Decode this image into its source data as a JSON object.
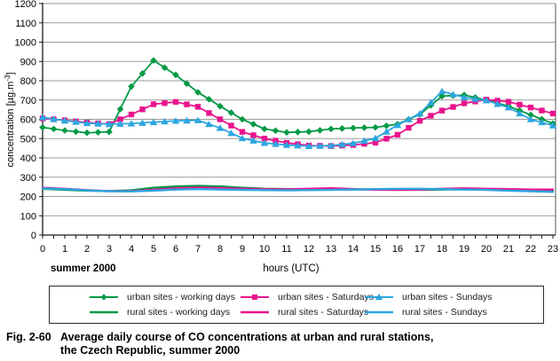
{
  "figure": {
    "caption_prefix": "Fig. 2-60",
    "caption_line1": "Average daily course of CO concentrations at urban and rural stations,",
    "caption_line2": "the Czech Republic, summer 2000"
  },
  "chart_data": {
    "type": "line",
    "title": "",
    "xlabel": "hours (UTC)",
    "ylabel": "concentration [µg.m-3]",
    "ylabel_parts": {
      "prefix": "concentration [µg.m",
      "sup": "-3",
      "suffix": "]"
    },
    "x_note": "summer 2000",
    "xlim": [
      0,
      23.12
    ],
    "ylim": [
      0,
      1200
    ],
    "x_ticks": [
      0,
      1,
      2,
      3,
      4,
      5,
      6,
      7,
      8,
      9,
      10,
      11,
      12,
      13,
      14,
      15,
      16,
      17,
      18,
      19,
      20,
      21,
      22,
      23
    ],
    "y_ticks": [
      0,
      100,
      200,
      300,
      400,
      500,
      600,
      700,
      800,
      900,
      1000,
      1100,
      1200
    ],
    "grid": true,
    "legend_position": "bottom",
    "x": [
      0,
      1,
      2,
      3,
      4,
      5,
      6,
      7,
      8,
      9,
      10,
      11,
      12,
      13,
      14,
      15,
      16,
      17,
      18,
      19,
      20,
      21,
      22,
      23
    ],
    "series": [
      {
        "name": "urban sites - working days",
        "color": "#009945",
        "marker": "diamond",
        "values": [
          558,
          542,
          530,
          535,
          770,
          905,
          830,
          740,
          668,
          600,
          550,
          532,
          536,
          550,
          555,
          558,
          575,
          625,
          720,
          726,
          700,
          668,
          623,
          578
        ]
      },
      {
        "name": "urban sites - Saturdays",
        "color": "#E9138D",
        "marker": "square",
        "values": [
          605,
          595,
          583,
          575,
          625,
          678,
          690,
          665,
          600,
          535,
          500,
          478,
          464,
          461,
          467,
          479,
          520,
          592,
          645,
          683,
          702,
          691,
          661,
          630
        ]
      },
      {
        "name": "urban sites - Sundays",
        "color": "#2CA6E0",
        "marker": "triangle",
        "values": [
          610,
          593,
          580,
          575,
          578,
          585,
          592,
          595,
          555,
          502,
          477,
          467,
          461,
          464,
          476,
          502,
          570,
          630,
          745,
          714,
          698,
          661,
          600,
          568
        ]
      },
      {
        "name": "rural sites - working days",
        "color": "#009945",
        "marker": "none",
        "values": [
          240,
          235,
          230,
          228,
          232,
          245,
          252,
          255,
          252,
          245,
          240,
          238,
          237,
          238,
          237,
          236,
          235,
          235,
          236,
          237,
          236,
          234,
          232,
          230
        ]
      },
      {
        "name": "rural sites - Saturdays",
        "color": "#E9138D",
        "marker": "none",
        "values": [
          245,
          240,
          233,
          228,
          228,
          235,
          242,
          246,
          244,
          240,
          238,
          237,
          240,
          243,
          238,
          235,
          234,
          236,
          240,
          242,
          240,
          238,
          236,
          236
        ]
      },
      {
        "name": "rural sites - Sundays",
        "color": "#2CA6E0",
        "marker": "none",
        "values": [
          242,
          238,
          232,
          227,
          226,
          230,
          236,
          238,
          236,
          234,
          233,
          232,
          233,
          234,
          236,
          238,
          240,
          240,
          238,
          236,
          234,
          230,
          227,
          224
        ]
      }
    ],
    "legend_columns": [
      [
        0,
        3
      ],
      [
        1,
        4
      ],
      [
        2,
        5
      ]
    ],
    "colors": {
      "grid": "#9b9b9b",
      "axis": "#1a1a1a",
      "frame_right": "#555555"
    }
  }
}
